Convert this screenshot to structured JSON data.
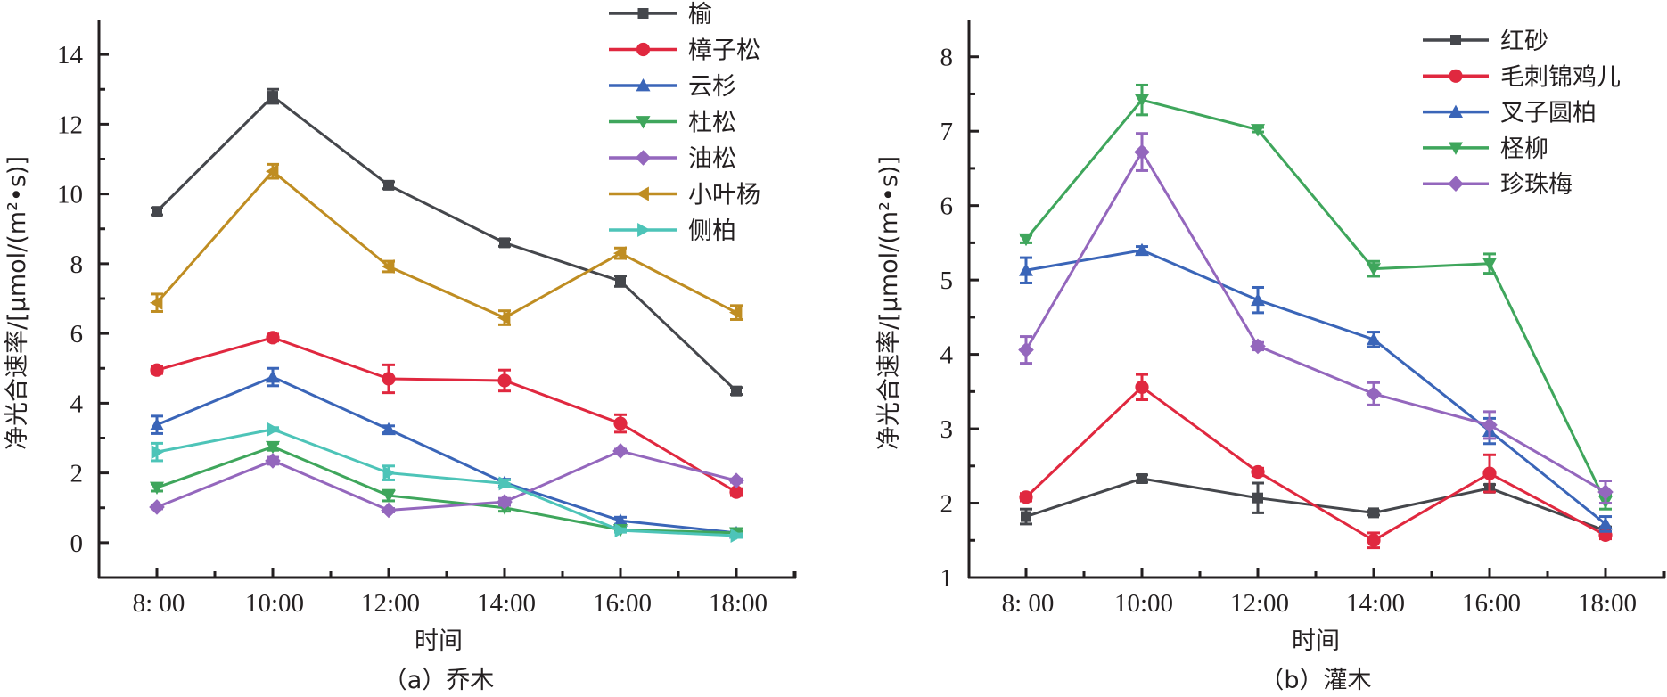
{
  "chart_data": [
    {
      "type": "line",
      "panel": "a",
      "caption": "（a）乔木",
      "xlabel": "时间",
      "ylabel": "净光合速率/[μmol/(m²•s)]",
      "categories": [
        "8: 00",
        "10:00",
        "12:00",
        "14:00",
        "16:00",
        "18:00"
      ],
      "yticks": [
        0,
        2,
        4,
        6,
        8,
        10,
        12,
        14
      ],
      "ylim": [
        -1,
        15
      ],
      "grid": false,
      "legend_position": "top-right",
      "series": [
        {
          "name": "榆",
          "color": "#45474c",
          "marker": "square",
          "values": [
            9.5,
            12.8,
            10.25,
            8.6,
            7.5,
            4.35
          ],
          "errors": [
            0.1,
            0.2,
            0.1,
            0.1,
            0.15,
            0.1
          ]
        },
        {
          "name": "樟子松",
          "color": "#e0283f",
          "marker": "circle",
          "values": [
            4.95,
            5.88,
            4.7,
            4.65,
            3.42,
            1.45
          ],
          "errors": [
            0.1,
            0.1,
            0.4,
            0.3,
            0.25,
            0.1
          ]
        },
        {
          "name": "云杉",
          "color": "#3a65b8",
          "marker": "triangle-up",
          "values": [
            3.38,
            4.75,
            3.25,
            1.72,
            0.63,
            0.28
          ],
          "errors": [
            0.25,
            0.25,
            0.1,
            0.1,
            0.1,
            0.05
          ]
        },
        {
          "name": "杜松",
          "color": "#3fa65c",
          "marker": "triangle-down",
          "values": [
            1.58,
            2.75,
            1.35,
            1.0,
            0.37,
            0.28
          ],
          "errors": [
            0.1,
            0.1,
            0.15,
            0.1,
            0.05,
            0.05
          ]
        },
        {
          "name": "油松",
          "color": "#9467bd",
          "marker": "diamond",
          "values": [
            1.02,
            2.35,
            0.93,
            1.17,
            2.63,
            1.78
          ],
          "errors": [
            0.05,
            0.1,
            0.05,
            0.1,
            0.05,
            0.05
          ]
        },
        {
          "name": "小叶杨",
          "color": "#bf8d22",
          "marker": "triangle-left",
          "values": [
            6.88,
            10.65,
            7.92,
            6.45,
            8.3,
            6.6
          ],
          "errors": [
            0.25,
            0.2,
            0.15,
            0.2,
            0.15,
            0.2
          ]
        },
        {
          "name": "侧柏",
          "color": "#4dc4b8",
          "marker": "triangle-right",
          "values": [
            2.6,
            3.25,
            2.0,
            1.7,
            0.35,
            0.2
          ],
          "errors": [
            0.25,
            0.05,
            0.2,
            0.1,
            0.05,
            0.05
          ]
        }
      ]
    },
    {
      "type": "line",
      "panel": "b",
      "caption": "（b）灌木",
      "xlabel": "时间",
      "ylabel": "净光合速率/[μmol/(m²•s)]",
      "categories": [
        "8: 00",
        "10:00",
        "12:00",
        "14:00",
        "16:00",
        "18:00"
      ],
      "yticks": [
        1,
        2,
        3,
        4,
        5,
        6,
        7,
        8
      ],
      "ylim": [
        1,
        8.5
      ],
      "grid": false,
      "legend_position": "top-right",
      "series": [
        {
          "name": "红砂",
          "color": "#45474c",
          "marker": "square",
          "values": [
            1.82,
            2.33,
            2.07,
            1.87,
            2.2,
            1.63
          ],
          "errors": [
            0.1,
            0.05,
            0.2,
            0.03,
            0.05,
            0.05
          ]
        },
        {
          "name": "毛刺锦鸡儿",
          "color": "#e0283f",
          "marker": "circle",
          "values": [
            2.08,
            3.56,
            2.42,
            1.5,
            2.4,
            1.57
          ],
          "errors": [
            0.05,
            0.17,
            0.05,
            0.1,
            0.25,
            0.05
          ]
        },
        {
          "name": "叉子圆柏",
          "color": "#3a65b8",
          "marker": "triangle-up",
          "values": [
            5.13,
            5.4,
            4.73,
            4.2,
            2.97,
            1.72
          ],
          "errors": [
            0.17,
            0.05,
            0.17,
            0.1,
            0.17,
            0.1
          ]
        },
        {
          "name": "柽柳",
          "color": "#3fa65c",
          "marker": "triangle-down",
          "values": [
            5.55,
            7.42,
            7.02,
            5.15,
            5.22,
            2.02
          ],
          "errors": [
            0.05,
            0.2,
            0.03,
            0.1,
            0.13,
            0.1
          ]
        },
        {
          "name": "珍珠梅",
          "color": "#9467bd",
          "marker": "diamond",
          "values": [
            4.06,
            6.72,
            4.11,
            3.47,
            3.05,
            2.15
          ],
          "errors": [
            0.18,
            0.25,
            0.05,
            0.15,
            0.18,
            0.15
          ]
        }
      ]
    }
  ]
}
